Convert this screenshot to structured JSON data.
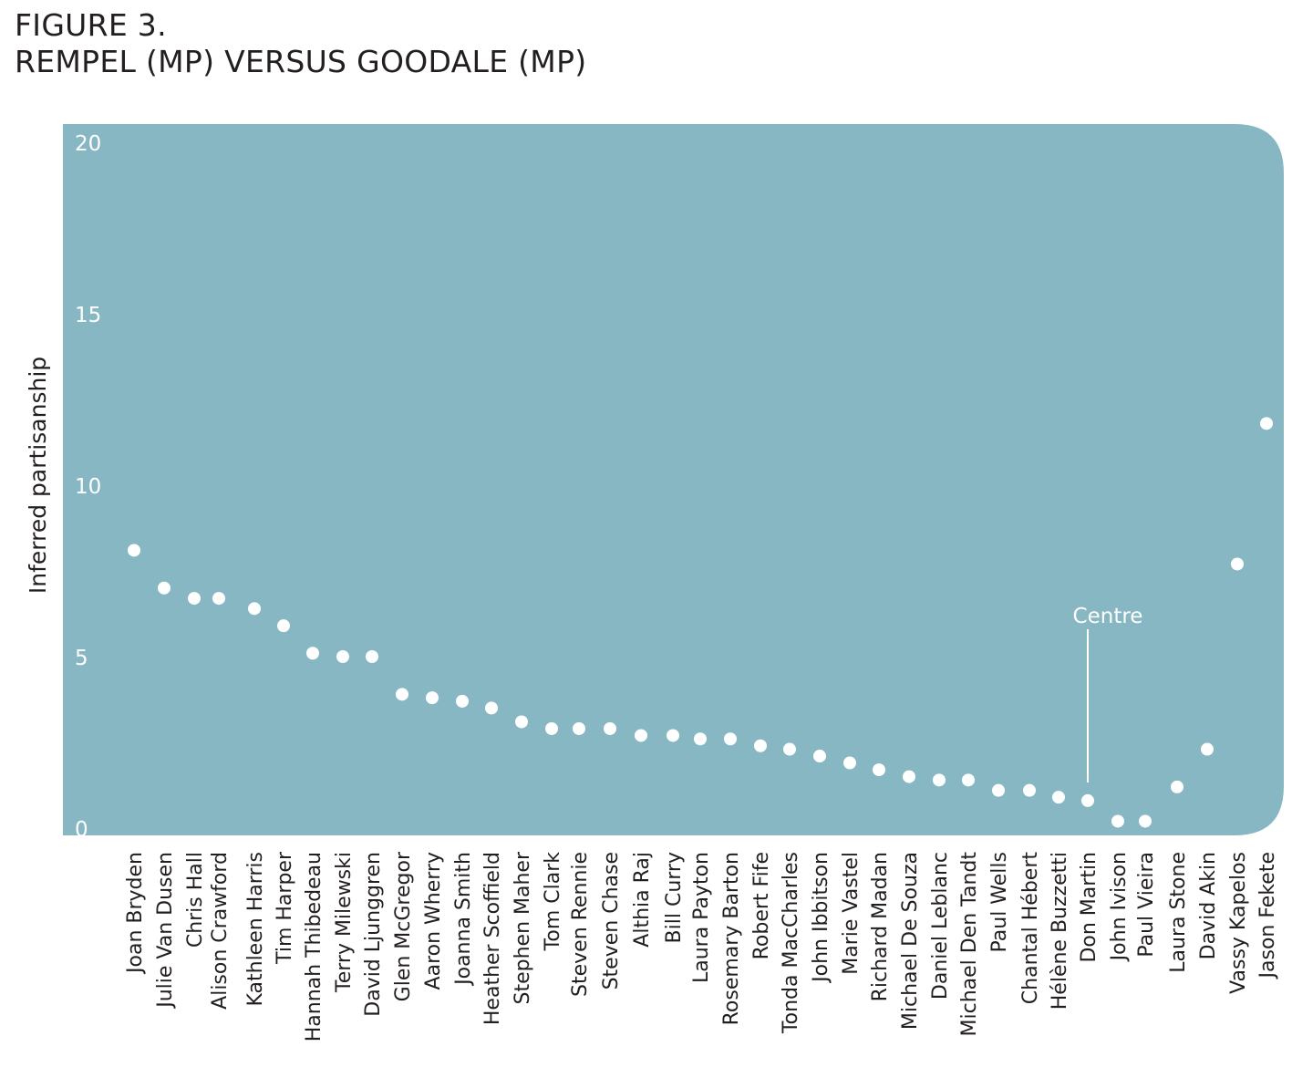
{
  "figure": {
    "label": "FIGURE 3.",
    "subtitle": "REMPEL (MP) VERSUS GOODALE (MP)"
  },
  "colors": {
    "panel": "#88b7c4",
    "marker": "#ffffff",
    "text": "#231f20"
  },
  "chart_data": {
    "type": "scatter",
    "title": "REMPEL (MP) VERSUS GOODALE (MP)",
    "xlabel": "",
    "ylabel": "Inferred partisanship",
    "ylim": [
      0,
      20
    ],
    "yticks": [
      0,
      5,
      10,
      15,
      20
    ],
    "grid": false,
    "legend": "none",
    "categories": [
      "Joan Bryden",
      "Julie Van Dusen",
      "Chris Hall",
      "Alison Crawford",
      "Kathleen Harris",
      "Tim Harper",
      "Hannah Thibedeau",
      "Terry Milewski",
      "David Ljunggren",
      "Glen McGregor",
      "Aaron Wherry",
      "Joanna Smith",
      "Heather Scoffield",
      "Stephen Maher",
      "Tom Clark",
      "Steven Rennie",
      "Steven Chase",
      "Althia Raj",
      "Bill Curry",
      "Laura Payton",
      "Rosemary Barton",
      "Robert Fife",
      "Tonda MacCharles",
      "John Ibbitson",
      "Marie Vastel",
      "Richard Madan",
      "Michael De Souza",
      "Daniel Leblanc",
      "Michael Den Tandt",
      "Paul Wells",
      "Chantal Hébert",
      "Hélène Buzzetti",
      "Don Martin",
      "John Ivison",
      "Paul Vieira",
      "Laura Stone",
      "David Akin",
      "Vassy Kapelos",
      "Jason Fekete"
    ],
    "values": [
      8.1,
      7.0,
      6.7,
      6.7,
      6.4,
      5.9,
      5.1,
      5.0,
      5.0,
      3.9,
      3.8,
      3.7,
      3.5,
      3.1,
      2.9,
      2.9,
      2.9,
      2.7,
      2.7,
      2.6,
      2.6,
      2.4,
      2.3,
      2.1,
      1.9,
      1.7,
      1.5,
      1.4,
      1.4,
      1.1,
      1.1,
      0.9,
      0.8,
      0.2,
      0.2,
      1.2,
      2.3,
      7.7,
      11.8
    ],
    "annotations": [
      {
        "text": "Centre",
        "category": "Don Martin"
      }
    ]
  }
}
